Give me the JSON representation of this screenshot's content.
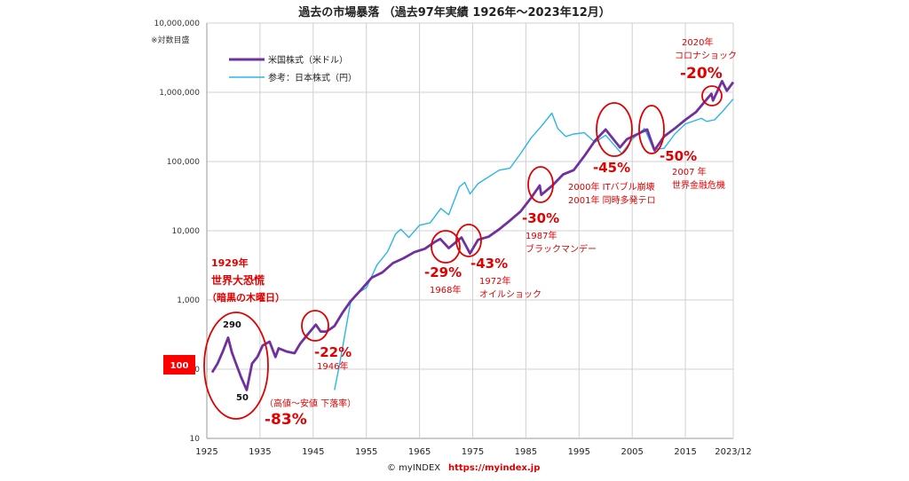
{
  "chart_data": {
    "type": "line",
    "title": "過去の市場暴落 （過去97年実績 1926年～2023年12月）",
    "ylabel_note": "※対数目盛",
    "y_scale": "log",
    "ylim": [
      10,
      10000000
    ],
    "xlim": [
      1925,
      2024
    ],
    "y_ticks": [
      {
        "value": 10,
        "label": "10"
      },
      {
        "value": 100,
        "label": "100"
      },
      {
        "value": 1000,
        "label": "1,000"
      },
      {
        "value": 10000,
        "label": "10,000"
      },
      {
        "value": 100000,
        "label": "100,000"
      },
      {
        "value": 1000000,
        "label": "1,000,000"
      },
      {
        "value": 10000000,
        "label": "10,000,000"
      }
    ],
    "x_ticks": [
      {
        "value": 1925,
        "label": "1925"
      },
      {
        "value": 1935,
        "label": "1935"
      },
      {
        "value": 1945,
        "label": "1945"
      },
      {
        "value": 1955,
        "label": "1955"
      },
      {
        "value": 1965,
        "label": "1965"
      },
      {
        "value": 1975,
        "label": "1975"
      },
      {
        "value": 1985,
        "label": "1985"
      },
      {
        "value": 1995,
        "label": "1995"
      },
      {
        "value": 2005,
        "label": "2005"
      },
      {
        "value": 2015,
        "label": "2015"
      },
      {
        "value": 2024,
        "label": "2023/12"
      }
    ],
    "grid": true,
    "legend_position": "top-left",
    "series": [
      {
        "name": "米国株式（米ドル）",
        "color": "#7030a0",
        "x": [
          1926,
          1927,
          1928,
          1929,
          1929.7,
          1930.5,
          1931.5,
          1932.5,
          1933.5,
          1934.5,
          1935.5,
          1936.8,
          1937.9,
          1938.5,
          1940,
          1941.5,
          1942.5,
          1944,
          1945.5,
          1946.4,
          1947.5,
          1949,
          1950.5,
          1952,
          1954,
          1956,
          1958,
          1960,
          1962,
          1964,
          1966,
          1968,
          1968.9,
          1970.5,
          1972.9,
          1974.5,
          1976,
          1978,
          1980,
          1982,
          1984,
          1986,
          1987.6,
          1987.9,
          1990,
          1992,
          1994,
          1996,
          1998,
          2000,
          2002.7,
          2004,
          2007.8,
          2009.2,
          2011,
          2013,
          2015,
          2017,
          2019.9,
          2020.2,
          2021.9,
          2022.8,
          2024
        ],
        "values": [
          90,
          120,
          180,
          285,
          175,
          120,
          75,
          50,
          120,
          150,
          220,
          250,
          150,
          200,
          180,
          170,
          230,
          320,
          440,
          350,
          350,
          420,
          650,
          950,
          1400,
          2100,
          2500,
          3400,
          4000,
          4900,
          5500,
          7000,
          7600,
          5600,
          8000,
          4700,
          7400,
          8200,
          10500,
          14000,
          19000,
          30000,
          45000,
          33000,
          45000,
          65000,
          75000,
          120000,
          200000,
          290000,
          160000,
          210000,
          290000,
          145000,
          230000,
          300000,
          400000,
          520000,
          950000,
          760000,
          1450000,
          1050000,
          1400000
        ]
      },
      {
        "name": "参考：日本株式（円）",
        "color": "#29b5e8",
        "x": [
          1949,
          1950,
          1952,
          1953,
          1955,
          1957,
          1959,
          1960.5,
          1961.5,
          1963,
          1965,
          1967,
          1969,
          1970.5,
          1972.5,
          1973.5,
          1974.5,
          1976,
          1978,
          1980,
          1982,
          1984,
          1986,
          1988,
          1989.9,
          1991,
          1992.5,
          1994,
          1996,
          1998,
          2000,
          2003,
          2005,
          2007.3,
          2009,
          2011,
          2013,
          2015,
          2018,
          2019,
          2020.5,
          2022,
          2024
        ],
        "values": [
          50,
          120,
          900,
          1200,
          1500,
          3200,
          5000,
          9000,
          10500,
          8000,
          12000,
          13000,
          21000,
          17000,
          43000,
          50000,
          34000,
          48000,
          60000,
          75000,
          80000,
          130000,
          220000,
          330000,
          500000,
          300000,
          230000,
          250000,
          260000,
          190000,
          240000,
          130000,
          210000,
          300000,
          150000,
          155000,
          250000,
          350000,
          420000,
          380000,
          400000,
          530000,
          800000
        ]
      }
    ],
    "annotations": [
      {
        "year": "1929年",
        "name": "世界大恐慌",
        "sub": "（暗黒の木曜日）"
      },
      {
        "peak_label": "290",
        "trough_label": "50"
      },
      {
        "note": "（高値～安値 下落率）",
        "drop": "-83%"
      },
      {
        "drop": "-22%",
        "year": "1946年"
      },
      {
        "drop": "-29%",
        "year": "1968年"
      },
      {
        "drop": "-43%",
        "year": "1972年",
        "name": "オイルショック"
      },
      {
        "drop": "-30%",
        "year": "1987年",
        "name": "ブラックマンデー"
      },
      {
        "drop": "-45%",
        "line1": "2000年 ITバブル崩壊",
        "line2": "2001年 同時多発テロ"
      },
      {
        "drop": "-50%",
        "year": "2007 年",
        "name": "世界金融危機"
      },
      {
        "drop": "-20%",
        "year": "2020年",
        "name": "コロナショック"
      }
    ],
    "base_badge": "100",
    "footer_copyright": "© myINDEX",
    "footer_url": "https://myindex.jp"
  }
}
